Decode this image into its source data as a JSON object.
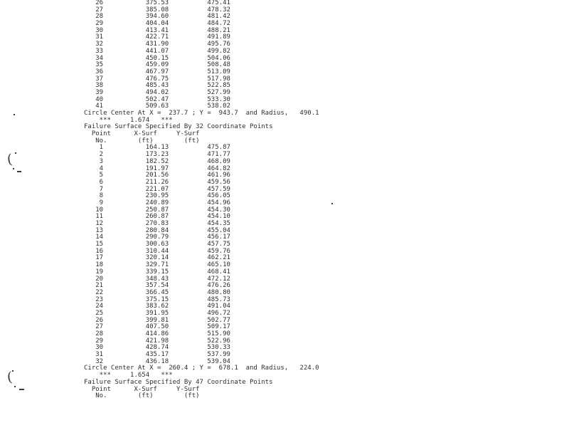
{
  "page": {
    "background_color": "#ffffff",
    "text_color": "#2e2e2e"
  },
  "labels": {
    "point": "Point",
    "no": "No.",
    "x_surf": "X-Surf",
    "y_surf": "Y-Surf",
    "unit": "(ft)",
    "circle_prefix": "Circle Center At X =",
    "circle_mid": "; Y =",
    "circle_suffix": "and Radius,",
    "stars": "***",
    "failure_prefix": "Failure Surface Specified By",
    "failure_suffix": "Coordinate Points"
  },
  "sections": [
    {
      "type": "rows",
      "name": "surface-table-continued",
      "rows": [
        [
          "26",
          "375.53",
          "475.41"
        ],
        [
          "27",
          "385.08",
          "478.32"
        ],
        [
          "28",
          "394.60",
          "481.42"
        ],
        [
          "29",
          "404.04",
          "484.72"
        ],
        [
          "30",
          "413.41",
          "488.21"
        ],
        [
          "31",
          "422.71",
          "491.89"
        ],
        [
          "32",
          "431.90",
          "495.76"
        ],
        [
          "33",
          "441.07",
          "499.82"
        ],
        [
          "34",
          "450.15",
          "504.06"
        ],
        [
          "35",
          "459.09",
          "508.48"
        ],
        [
          "36",
          "467.97",
          "513.09"
        ],
        [
          "37",
          "476.75",
          "517.98"
        ],
        [
          "38",
          "485.43",
          "522.85"
        ],
        [
          "39",
          "494.02",
          "527.99"
        ],
        [
          "40",
          "502.47",
          "533.30"
        ],
        [
          "41",
          "509.63",
          "538.02"
        ]
      ]
    },
    {
      "type": "circle",
      "x": "237.7",
      "y": "943.7",
      "radius": "490.1"
    },
    {
      "type": "fos",
      "value": "1.674"
    },
    {
      "type": "surface_header",
      "points": "32"
    },
    {
      "type": "col_header"
    },
    {
      "type": "rows",
      "name": "surface-table-32-points",
      "rows": [
        [
          "1",
          "164.13",
          "475.87"
        ],
        [
          "2",
          "173.23",
          "471.77"
        ],
        [
          "3",
          "182.52",
          "468.09"
        ],
        [
          "4",
          "191.97",
          "464.82"
        ],
        [
          "5",
          "201.56",
          "461.96"
        ],
        [
          "6",
          "211.26",
          "459.56"
        ],
        [
          "7",
          "221.07",
          "457.59"
        ],
        [
          "8",
          "230.95",
          "456.05"
        ],
        [
          "9",
          "240.89",
          "454.96"
        ],
        [
          "10",
          "250.87",
          "454.30"
        ],
        [
          "11",
          "260.87",
          "454.10"
        ],
        [
          "12",
          "270.83",
          "454.35"
        ],
        [
          "13",
          "280.84",
          "455.04"
        ],
        [
          "14",
          "290.79",
          "456.17"
        ],
        [
          "15",
          "300.63",
          "457.75"
        ],
        [
          "16",
          "310.44",
          "459.76"
        ],
        [
          "17",
          "320.14",
          "462.21"
        ],
        [
          "18",
          "329.71",
          "465.10"
        ],
        [
          "19",
          "339.15",
          "468.41"
        ],
        [
          "20",
          "348.43",
          "472.12"
        ],
        [
          "21",
          "357.54",
          "476.26"
        ],
        [
          "22",
          "366.45",
          "480.80"
        ],
        [
          "23",
          "375.15",
          "485.73"
        ],
        [
          "24",
          "383.62",
          "491.04"
        ],
        [
          "25",
          "391.95",
          "496.72"
        ],
        [
          "26",
          "399.81",
          "502.77"
        ],
        [
          "27",
          "407.50",
          "509.17"
        ],
        [
          "28",
          "414.86",
          "515.90"
        ],
        [
          "29",
          "421.98",
          "522.96"
        ],
        [
          "30",
          "428.74",
          "530.33"
        ],
        [
          "31",
          "435.17",
          "537.99"
        ],
        [
          "32",
          "436.18",
          "539.04"
        ]
      ]
    },
    {
      "type": "circle",
      "x": "260.4",
      "y": "678.1",
      "radius": "224.0"
    },
    {
      "type": "fos",
      "value": "1.654"
    },
    {
      "type": "surface_header",
      "points": "47"
    },
    {
      "type": "col_header"
    }
  ],
  "annotations": {
    "paren_glyph": "("
  }
}
